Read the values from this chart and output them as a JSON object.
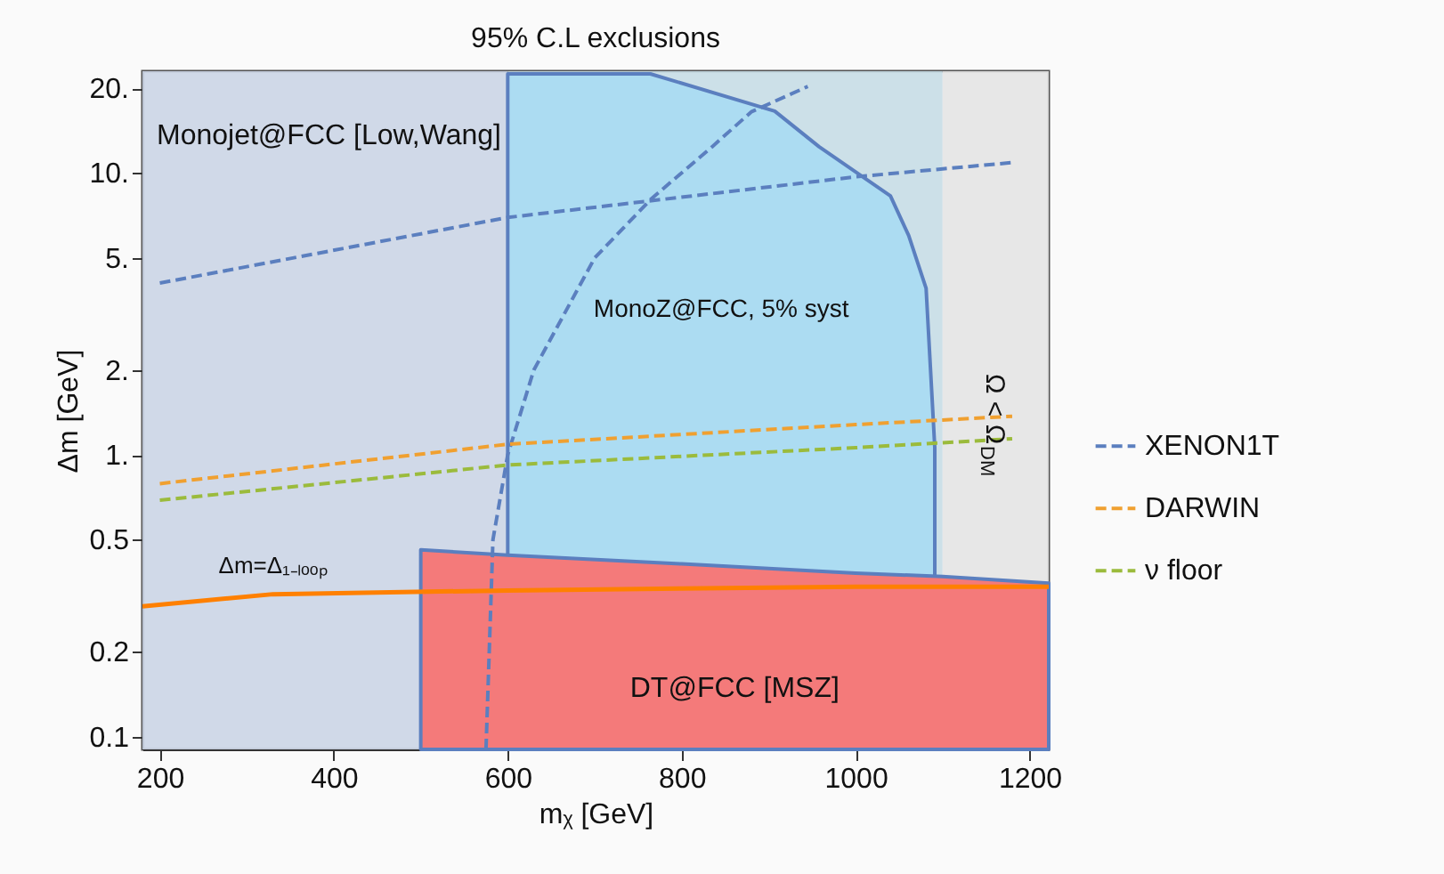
{
  "chart_data": {
    "type": "line",
    "title": "95% C.L exclusions",
    "xlabel": "mᵪ [GeV]",
    "ylabel": "Δm [GeV]",
    "xlim": [
      180,
      1222
    ],
    "ylim": [
      0.09,
      23
    ],
    "xticks": [
      200,
      400,
      600,
      800,
      1000,
      1200
    ],
    "yticks": [
      {
        "value": 0.1,
        "label": "0.1"
      },
      {
        "value": 0.2,
        "label": "0.2"
      },
      {
        "value": 0.5,
        "label": "0.5"
      },
      {
        "value": 1,
        "label": "1."
      },
      {
        "value": 2,
        "label": "2."
      },
      {
        "value": 5,
        "label": "5."
      },
      {
        "value": 10,
        "label": "10."
      },
      {
        "value": 20,
        "label": "20."
      }
    ],
    "log": "y",
    "grid": false,
    "legend": "right",
    "bands": [
      {
        "axis": "x",
        "from": 180,
        "to": 600,
        "label": "Monojet@FCC [Low,Wang]",
        "color": "#cbd5e6"
      },
      {
        "axis": "x",
        "from": 600,
        "to": 1100,
        "color": "#c6dde6"
      },
      {
        "axis": "x",
        "from": 1100,
        "to": 1222,
        "label": "Ω < Ω$_{DM}$",
        "color": "#e4e4e4"
      }
    ],
    "series": [
      {
        "type": "area",
        "name": "MonoZ@FCC, 5% syst",
        "color": "#acdcf2",
        "x": [
          600,
          764,
          907,
          958,
          1040,
          1061,
          1081,
          1091
        ],
        "values": [
          22.5,
          22.5,
          16.6,
          12.4,
          8.3,
          6.0,
          3.9,
          1.06
        ]
      },
      {
        "type": "area",
        "name": "DT@FCC [MSZ]",
        "color": "#f47a7a",
        "x": [
          500,
          600,
          800,
          1000,
          1100,
          1222
        ],
        "values": [
          0.46,
          0.44,
          0.41,
          0.38,
          0.37,
          0.35
        ]
      },
      {
        "name": "XENON1T",
        "color": "#5b7fbf",
        "line_style": "dashed",
        "x": [
          200,
          600,
          1000,
          1180
        ],
        "values": [
          4.07,
          6.96,
          9.7,
          10.9
        ]
      },
      {
        "color": "#5b7fbf",
        "line_style": "dashed",
        "x": [
          575,
          583,
          600,
          630,
          700,
          765,
          835,
          880,
          945
        ],
        "values": [
          0.09,
          0.5,
          1.0,
          2.0,
          5.0,
          8.1,
          12.4,
          16.5,
          20.3
        ]
      },
      {
        "name": "DARWIN",
        "color": "#f0a030",
        "line_style": "dashed",
        "x": [
          200,
          600,
          1000,
          1180
        ],
        "values": [
          0.79,
          1.09,
          1.28,
          1.37
        ]
      },
      {
        "name": "ν floor",
        "color": "#9bbb3c",
        "line_style": "dashed",
        "x": [
          200,
          600,
          1000,
          1180
        ],
        "values": [
          0.69,
          0.92,
          1.06,
          1.14
        ]
      },
      {
        "name": "Δm=Δ₁₋ₗₒₒₚ",
        "color": "#ff8000",
        "line_style": "solid",
        "x": [
          180,
          330,
          600,
          800,
          1000,
          1222
        ],
        "values": [
          0.29,
          0.32,
          0.33,
          0.335,
          0.34,
          0.34
        ]
      }
    ]
  }
}
